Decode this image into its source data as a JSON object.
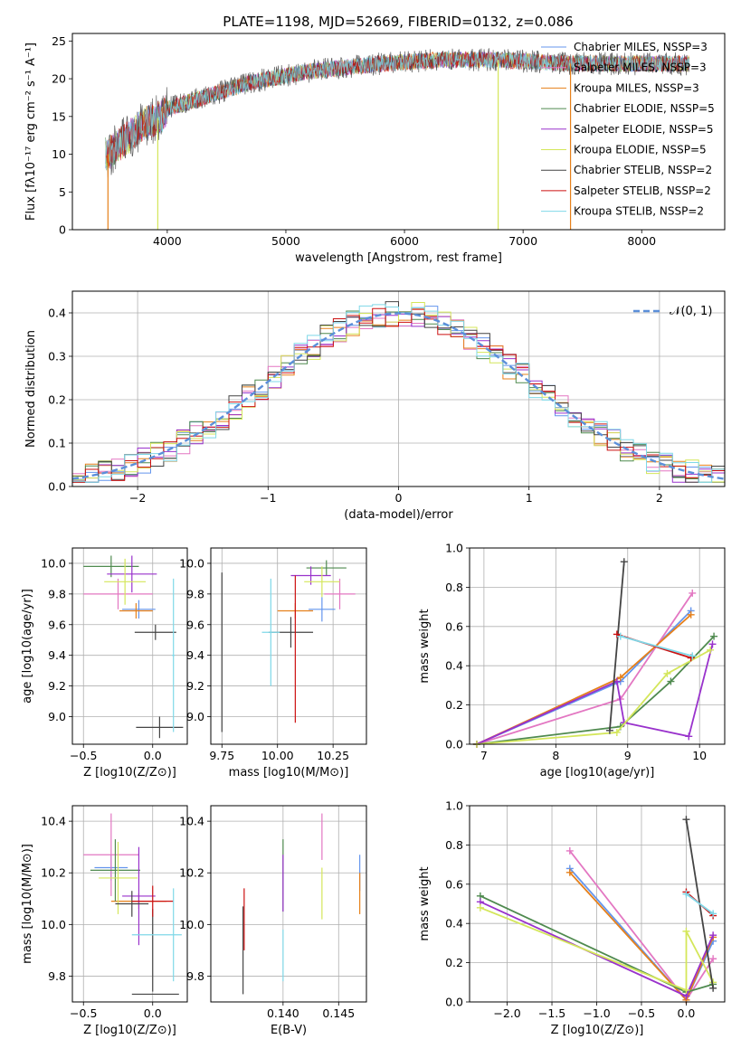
{
  "chart_data": [
    {
      "id": "spectrum",
      "type": "line",
      "title": "PLATE=1198, MJD=52669, FIBERID=0132, z=0.086",
      "xlabel": "wavelength [Angstrom, rest frame]",
      "ylabel": "Flux [fλ10⁻¹⁷ erg cm⁻² s⁻¹ A⁻¹]",
      "xlim": [
        3200,
        8700
      ],
      "ylim": [
        0,
        26
      ],
      "xticks": [
        4000,
        5000,
        6000,
        7000,
        8000
      ],
      "yticks": [
        0,
        5,
        10,
        15,
        20,
        25
      ],
      "grid": false,
      "legend_position": "right",
      "continuum": {
        "x": [
          3500,
          3650,
          3800,
          3950,
          4000,
          4300,
          4700,
          5200,
          5800,
          6300,
          6800,
          7400,
          8000,
          8400
        ],
        "y": [
          10,
          12,
          14,
          15,
          16,
          17.5,
          19.5,
          21,
          22,
          22.5,
          22.5,
          22,
          22,
          22
        ]
      },
      "series": [
        {
          "name": "Chabrier MILES, N_SSP=3",
          "color": "#6495ed"
        },
        {
          "name": "Salpeter MILES, N_SSP=3",
          "color": "#e377c2"
        },
        {
          "name": "Kroupa MILES, N_SSP=3",
          "color": "#e6801a"
        },
        {
          "name": "Chabrier ELODIE, N_SSP=5",
          "color": "#4f8a4f"
        },
        {
          "name": "Salpeter ELODIE, N_SSP=5",
          "color": "#9932cc"
        },
        {
          "name": "Kroupa ELODIE, N_SSP=5",
          "color": "#d4e65a"
        },
        {
          "name": "Chabrier STELIB, N_SSP=2",
          "color": "#444444"
        },
        {
          "name": "Salpeter STELIB, N_SSP=2",
          "color": "#cc1111"
        },
        {
          "name": "Kroupa STELIB, N_SSP=2",
          "color": "#7fd8e8"
        }
      ],
      "drops": [
        {
          "x": 3500,
          "color": "#e6801a"
        },
        {
          "x": 3920,
          "color": "#d4e65a"
        },
        {
          "x": 6790,
          "color": "#d4e65a"
        },
        {
          "x": 7400,
          "color": "#e6801a"
        }
      ]
    },
    {
      "id": "residuals",
      "type": "line",
      "xlabel": "(data-model)/error",
      "ylabel": "Normed distribution",
      "xlim": [
        -2.5,
        2.5
      ],
      "ylim": [
        0,
        0.45
      ],
      "xticks": [
        -2,
        -1,
        0,
        1,
        2
      ],
      "yticks": [
        0.0,
        0.1,
        0.2,
        0.3,
        0.4
      ],
      "grid": true,
      "legend_position": "top-right",
      "gaussian_label": "𝒩(0, 1)",
      "gaussian_color": "#5b8fd9"
    },
    {
      "id": "age-vs-Z",
      "type": "scatter",
      "xlabel": "Z [log10(Z/Z⊙)]",
      "ylabel": "age [log10(age/yr)]",
      "xlim": [
        -0.58,
        0.25
      ],
      "ylim": [
        8.82,
        10.1
      ],
      "xticks": [
        -0.5,
        0.0
      ],
      "yticks": [
        9.0,
        9.2,
        9.4,
        9.6,
        9.8,
        10.0
      ],
      "grid": true,
      "points": [
        {
          "x": -0.1,
          "y": 9.7,
          "xerr": 0.12,
          "yerr": 0.06,
          "color": "#6495ed"
        },
        {
          "x": -0.25,
          "y": 9.8,
          "xerr": 0.25,
          "yerr": 0.1,
          "color": "#e377c2"
        },
        {
          "x": -0.12,
          "y": 9.69,
          "xerr": 0.12,
          "yerr": 0.05,
          "color": "#e6801a"
        },
        {
          "x": -0.3,
          "y": 9.98,
          "xerr": 0.2,
          "yerr": 0.07,
          "color": "#4f8a4f"
        },
        {
          "x": -0.15,
          "y": 9.93,
          "xerr": 0.18,
          "yerr": 0.12,
          "color": "#9932cc"
        },
        {
          "x": -0.2,
          "y": 9.88,
          "xerr": 0.15,
          "yerr": 0.15,
          "color": "#d4e65a"
        },
        {
          "x": 0.05,
          "y": 8.93,
          "xerr": 0.17,
          "yerr": 0.07,
          "color": "#444444"
        },
        {
          "x": 0.02,
          "y": 9.55,
          "xerr": 0.15,
          "yerr": 0.05,
          "color": "#444444"
        },
        {
          "x": 0.15,
          "y": 9.4,
          "xerr": 0.01,
          "yerr": 0.5,
          "color": "#7fd8e8"
        }
      ]
    },
    {
      "id": "age-vs-mass",
      "type": "scatter",
      "xlabel": "mass [log10(M/M⊙)]",
      "ylabel": "",
      "xlim": [
        9.7,
        10.4
      ],
      "ylim": [
        8.82,
        10.1
      ],
      "xticks": [
        9.75,
        10.0,
        10.25
      ],
      "yticks": [
        9.0,
        9.2,
        9.4,
        9.6,
        9.8,
        10.0
      ],
      "grid": true,
      "points": [
        {
          "x": 10.2,
          "y": 9.7,
          "xerr": 0.06,
          "yerr": 0.08,
          "color": "#6495ed"
        },
        {
          "x": 10.28,
          "y": 9.8,
          "xerr": 0.07,
          "yerr": 0.1,
          "color": "#e377c2"
        },
        {
          "x": 10.08,
          "y": 9.69,
          "xerr": 0.08,
          "yerr": 0.05,
          "color": "#e6801a"
        },
        {
          "x": 10.22,
          "y": 9.97,
          "xerr": 0.09,
          "yerr": 0.05,
          "color": "#4f8a4f"
        },
        {
          "x": 10.15,
          "y": 9.92,
          "xerr": 0.09,
          "yerr": 0.06,
          "color": "#9932cc"
        },
        {
          "x": 10.2,
          "y": 9.88,
          "xerr": 0.08,
          "yerr": 0.1,
          "color": "#d4e65a"
        },
        {
          "x": 9.75,
          "y": 9.42,
          "xerr": 0.0,
          "yerr": 0.52,
          "color": "#444444"
        },
        {
          "x": 10.06,
          "y": 9.55,
          "xerr": 0.1,
          "yerr": 0.1,
          "color": "#444444"
        },
        {
          "x": 10.08,
          "y": 9.44,
          "xerr": 0.0,
          "yerr": 0.48,
          "color": "#cc1111"
        },
        {
          "x": 9.97,
          "y": 9.55,
          "xerr": 0.04,
          "yerr": 0.35,
          "color": "#7fd8e8"
        }
      ]
    },
    {
      "id": "massweight-vs-age",
      "type": "line",
      "xlabel": "age [log10(age/yr)]",
      "ylabel": "mass weight",
      "xlim": [
        6.8,
        10.35
      ],
      "ylim": [
        0,
        1.0
      ],
      "xticks": [
        7,
        8,
        9,
        10
      ],
      "yticks": [
        0.0,
        0.2,
        0.4,
        0.6,
        0.8,
        1.0
      ],
      "grid": true,
      "series": [
        {
          "name": "Chabrier MILES",
          "color": "#6495ed",
          "x": [
            6.9,
            8.9,
            9.88
          ],
          "y": [
            0.0,
            0.32,
            0.68
          ]
        },
        {
          "name": "Salpeter MILES",
          "color": "#e377c2",
          "x": [
            6.9,
            8.9,
            9.9
          ],
          "y": [
            0.0,
            0.23,
            0.77
          ]
        },
        {
          "name": "Kroupa MILES",
          "color": "#e6801a",
          "x": [
            6.9,
            8.9,
            9.88
          ],
          "y": [
            0.0,
            0.34,
            0.66
          ]
        },
        {
          "name": "Chabrier ELODIE",
          "color": "#4f8a4f",
          "x": [
            6.9,
            8.9,
            9.6,
            10.2
          ],
          "y": [
            0.0,
            0.09,
            0.32,
            0.55
          ]
        },
        {
          "name": "Salpeter ELODIE",
          "color": "#9932cc",
          "x": [
            6.9,
            8.85,
            8.95,
            9.85,
            10.18
          ],
          "y": [
            0.0,
            0.32,
            0.11,
            0.04,
            0.51
          ]
        },
        {
          "name": "Kroupa ELODIE",
          "color": "#d4e65a",
          "x": [
            6.9,
            8.85,
            9.55,
            10.15
          ],
          "y": [
            0.0,
            0.06,
            0.36,
            0.48
          ]
        },
        {
          "name": "Chabrier STELIB",
          "color": "#444444",
          "x": [
            8.75,
            8.95
          ],
          "y": [
            0.07,
            0.93
          ]
        },
        {
          "name": "Salpeter STELIB",
          "color": "#cc1111",
          "x": [
            8.85,
            9.88
          ],
          "y": [
            0.56,
            0.44
          ]
        },
        {
          "name": "Kroupa STELIB",
          "color": "#7fd8e8",
          "x": [
            8.9,
            9.9
          ],
          "y": [
            0.55,
            0.45
          ]
        }
      ]
    },
    {
      "id": "mass-vs-Z",
      "type": "scatter",
      "xlabel": "Z [log10(Z/Z⊙)]",
      "ylabel": "mass [log10(M/M⊙)]",
      "xlim": [
        -0.58,
        0.25
      ],
      "ylim": [
        9.7,
        10.46
      ],
      "xticks": [
        -0.5,
        0.0
      ],
      "yticks": [
        9.8,
        10.0,
        10.2,
        10.4
      ],
      "grid": true,
      "points": [
        {
          "x": -0.3,
          "y": 10.22,
          "xerr": 0.12,
          "yerr": 0.05,
          "color": "#6495ed"
        },
        {
          "x": -0.3,
          "y": 10.27,
          "xerr": 0.2,
          "yerr": 0.16,
          "color": "#e377c2"
        },
        {
          "x": -0.1,
          "y": 10.09,
          "xerr": 0.2,
          "yerr": 0.03,
          "color": "#e6801a"
        },
        {
          "x": -0.27,
          "y": 10.21,
          "xerr": 0.18,
          "yerr": 0.12,
          "color": "#4f8a4f"
        },
        {
          "x": -0.1,
          "y": 10.11,
          "xerr": 0.12,
          "yerr": 0.19,
          "color": "#9932cc"
        },
        {
          "x": -0.25,
          "y": 10.18,
          "xerr": 0.14,
          "yerr": 0.14,
          "color": "#d4e65a"
        },
        {
          "x": -0.15,
          "y": 10.08,
          "xerr": 0.12,
          "yerr": 0.05,
          "color": "#444444"
        },
        {
          "x": 0.02,
          "y": 9.73,
          "xerr": 0.17,
          "yerr": 0.0,
          "color": "#444444"
        },
        {
          "x": 0.0,
          "y": 9.9,
          "xerr": 0.0,
          "yerr": 0.16,
          "color": "#444444"
        },
        {
          "x": 0.0,
          "y": 10.09,
          "xerr": 0.15,
          "yerr": 0.06,
          "color": "#cc1111"
        },
        {
          "x": 0.03,
          "y": 9.96,
          "xerr": 0.18,
          "yerr": 0.0,
          "color": "#7fd8e8"
        },
        {
          "x": 0.15,
          "y": 9.96,
          "xerr": 0.0,
          "yerr": 0.18,
          "color": "#7fd8e8"
        }
      ]
    },
    {
      "id": "mass-vs-ebv",
      "type": "scatter",
      "xlabel": "E(B-V)",
      "ylabel": "",
      "xlim": [
        0.1335,
        0.1475
      ],
      "ylim": [
        9.7,
        10.46
      ],
      "xticks": [
        0.14,
        0.145
      ],
      "yticks": [
        9.8,
        10.0,
        10.2,
        10.4
      ],
      "grid": true,
      "points": [
        {
          "x": 0.1364,
          "y": 9.9,
          "xerr": 0,
          "yerr": 0.17,
          "color": "#444444"
        },
        {
          "x": 0.1365,
          "y": 10.02,
          "xerr": 0,
          "yerr": 0.12,
          "color": "#cc1111"
        },
        {
          "x": 0.14,
          "y": 9.88,
          "xerr": 0,
          "yerr": 0.1,
          "color": "#7fd8e8"
        },
        {
          "x": 0.14,
          "y": 10.19,
          "xerr": 0,
          "yerr": 0.14,
          "color": "#4f8a4f"
        },
        {
          "x": 0.14,
          "y": 10.16,
          "xerr": 0,
          "yerr": 0.11,
          "color": "#9932cc"
        },
        {
          "x": 0.1435,
          "y": 10.34,
          "xerr": 0,
          "yerr": 0.09,
          "color": "#e377c2"
        },
        {
          "x": 0.1435,
          "y": 10.12,
          "xerr": 0,
          "yerr": 0.1,
          "color": "#d4e65a"
        },
        {
          "x": 0.1469,
          "y": 10.2,
          "xerr": 0,
          "yerr": 0.07,
          "color": "#6495ed"
        },
        {
          "x": 0.1469,
          "y": 10.12,
          "xerr": 0,
          "yerr": 0.08,
          "color": "#e6801a"
        }
      ]
    },
    {
      "id": "massweight-vs-Z",
      "type": "line",
      "xlabel": "Z [log10(Z/Z⊙)]",
      "ylabel": "mass weight",
      "xlim": [
        -2.42,
        0.43
      ],
      "ylim": [
        0,
        1.0
      ],
      "xticks": [
        -2.0,
        -1.5,
        -1.0,
        -0.5,
        0.0
      ],
      "yticks": [
        0.0,
        0.2,
        0.4,
        0.6,
        0.8,
        1.0
      ],
      "grid": true,
      "series": [
        {
          "name": "Chabrier MILES",
          "color": "#6495ed",
          "x": [
            -1.3,
            0.0,
            0.3
          ],
          "y": [
            0.68,
            0.01,
            0.31
          ]
        },
        {
          "name": "Salpeter MILES",
          "color": "#e377c2",
          "x": [
            -1.3,
            0.0,
            0.3
          ],
          "y": [
            0.77,
            0.01,
            0.22
          ]
        },
        {
          "name": "Kroupa MILES",
          "color": "#e6801a",
          "x": [
            -1.3,
            0.0,
            0.3
          ],
          "y": [
            0.66,
            0.01,
            0.33
          ]
        },
        {
          "name": "Chabrier ELODIE",
          "color": "#4f8a4f",
          "x": [
            -2.3,
            0.0,
            0.3
          ],
          "y": [
            0.54,
            0.05,
            0.09
          ]
        },
        {
          "name": "Salpeter ELODIE",
          "color": "#9932cc",
          "x": [
            -2.3,
            0.0,
            0.3
          ],
          "y": [
            0.51,
            0.03,
            0.34
          ]
        },
        {
          "name": "Kroupa ELODIE",
          "color": "#d4e65a",
          "x": [
            -2.3,
            0.0,
            0.0,
            0.3
          ],
          "y": [
            0.48,
            0.06,
            0.36,
            0.1
          ]
        },
        {
          "name": "Chabrier STELIB",
          "color": "#444444",
          "x": [
            0.0,
            0.3
          ],
          "y": [
            0.93,
            0.07
          ]
        },
        {
          "name": "Salpeter STELIB",
          "color": "#cc1111",
          "x": [
            0.0,
            0.3
          ],
          "y": [
            0.56,
            0.44
          ]
        },
        {
          "name": "Kroupa STELIB",
          "color": "#7fd8e8",
          "x": [
            0.0,
            0.3
          ],
          "y": [
            0.55,
            0.45
          ]
        }
      ]
    }
  ]
}
